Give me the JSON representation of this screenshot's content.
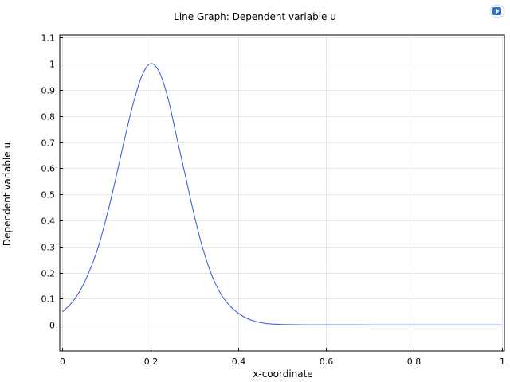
{
  "chart_data": {
    "type": "line",
    "title": "Line Graph: Dependent variable u",
    "xlabel": "x-coordinate",
    "ylabel": "Dependent variable u",
    "xlim": [
      -0.006,
      1.006
    ],
    "ylim": [
      -0.1,
      1.11
    ],
    "xticks": [
      0,
      0.2,
      0.4,
      0.6,
      0.8,
      1
    ],
    "xtick_labels": [
      "0",
      "0.2",
      "0.4",
      "0.6",
      "0.8",
      "1"
    ],
    "yticks": [
      0,
      0.1,
      0.2,
      0.3,
      0.4,
      0.5,
      0.6,
      0.7,
      0.8,
      0.9,
      1,
      1.1
    ],
    "ytick_labels": [
      "0",
      "0.1",
      "0.2",
      "0.3",
      "0.4",
      "0.5",
      "0.6",
      "0.7",
      "0.8",
      "0.9",
      "1",
      "1.1"
    ],
    "grid": true,
    "series": [
      {
        "color": "#3355dd",
        "x": [
          0,
          0.02,
          0.04,
          0.06,
          0.08,
          0.1,
          0.12,
          0.14,
          0.16,
          0.18,
          0.2,
          0.22,
          0.24,
          0.26,
          0.28,
          0.3,
          0.32,
          0.34,
          0.36,
          0.38,
          0.4,
          0.42,
          0.44,
          0.46,
          0.48,
          0.5,
          0.55,
          0.6,
          0.7,
          0.8,
          0.9,
          1.0
        ],
        "y": [
          0.05,
          0.082,
          0.13,
          0.2,
          0.29,
          0.41,
          0.55,
          0.7,
          0.84,
          0.95,
          1.0,
          0.97,
          0.87,
          0.72,
          0.57,
          0.42,
          0.29,
          0.19,
          0.12,
          0.075,
          0.045,
          0.025,
          0.013,
          0.006,
          0.003,
          0.0015,
          0.0003,
          0.0001,
          0,
          0,
          0,
          0
        ]
      }
    ]
  }
}
